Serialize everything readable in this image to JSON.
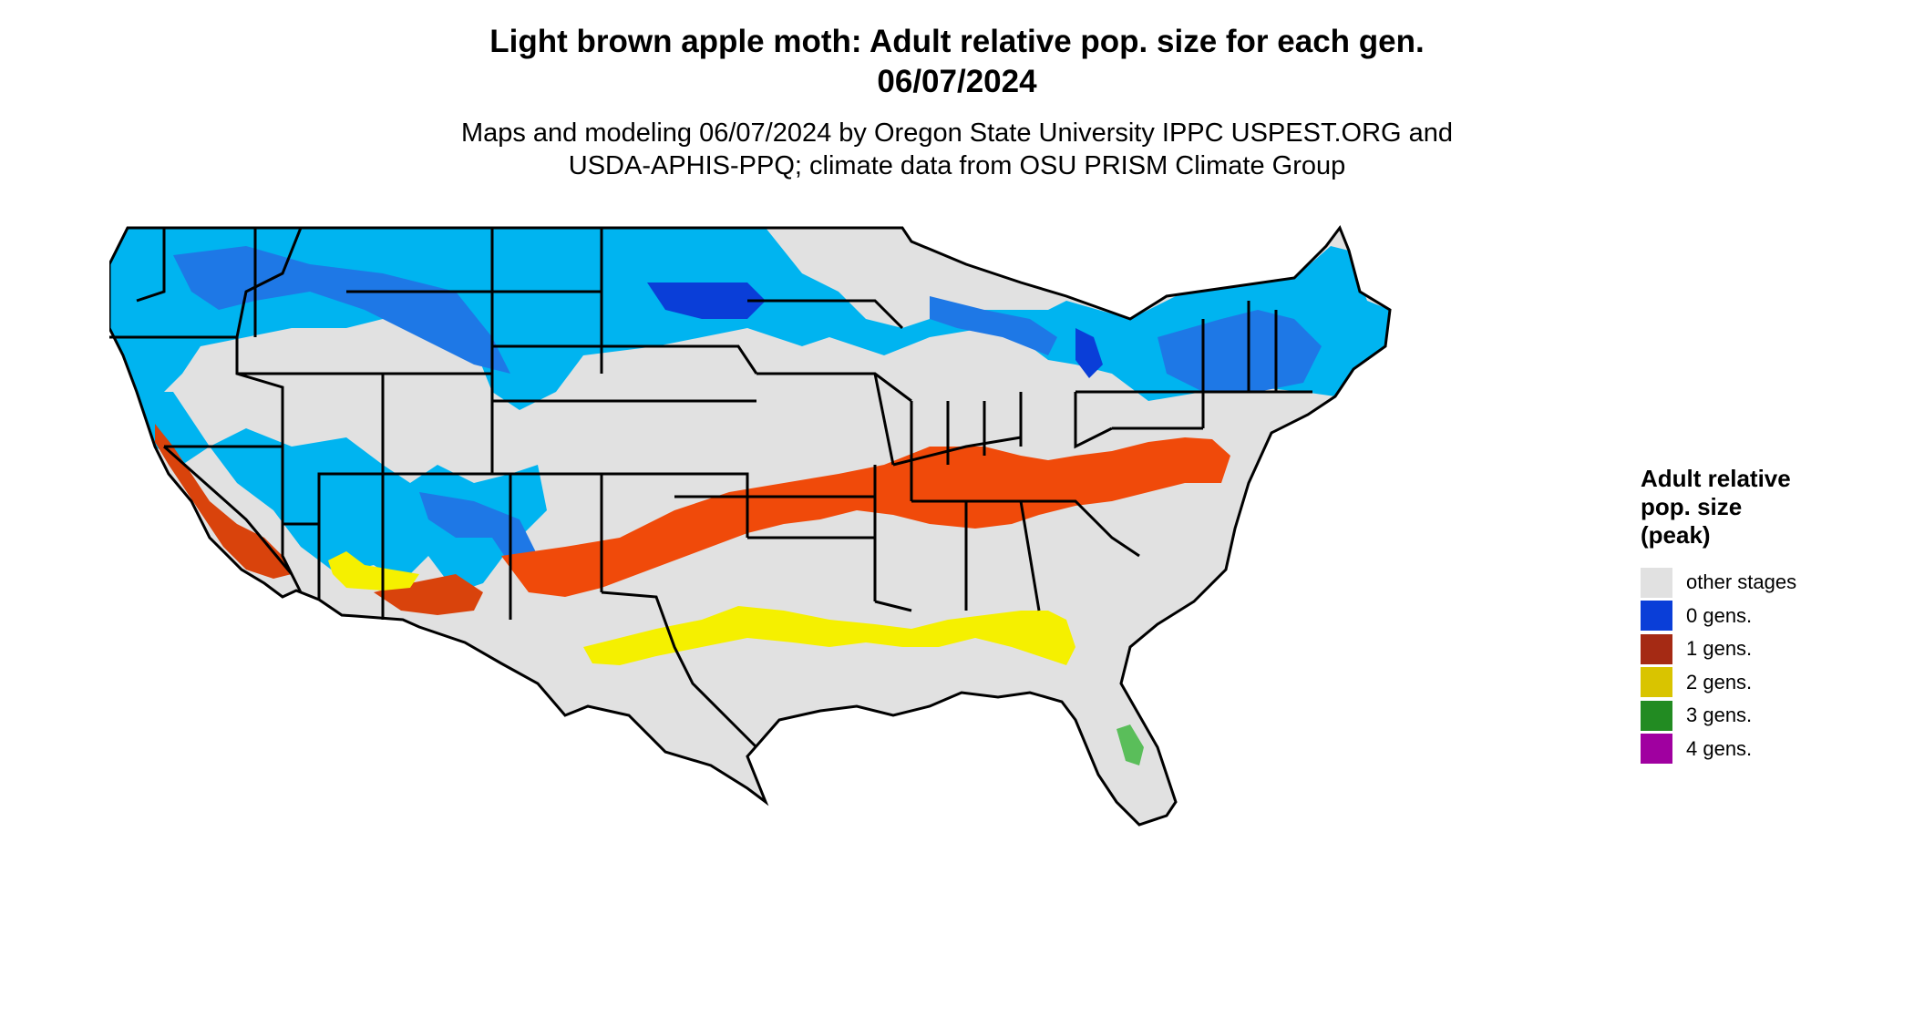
{
  "title": {
    "line1": "Light brown apple moth: Adult relative pop. size for each gen.",
    "line2": "06/07/2024"
  },
  "subtitle": {
    "line1": "Maps and modeling 06/07/2024 by Oregon State University IPPC USPEST.ORG and",
    "line2": "USDA-APHIS-PPQ; climate data from OSU PRISM Climate Group"
  },
  "legend": {
    "title_lines": [
      "Adult relative",
      "pop. size",
      "(peak)"
    ],
    "items": [
      {
        "label": "other stages",
        "color": "#e1e1e1"
      },
      {
        "label": "0 gens.",
        "color": "#0a3ed8"
      },
      {
        "label": "1 gens.",
        "color": "#a52a14"
      },
      {
        "label": "2 gens.",
        "color": "#d9c400"
      },
      {
        "label": "3 gens.",
        "color": "#228b22"
      },
      {
        "label": "4 gens.",
        "color": "#a000a0"
      }
    ]
  },
  "map": {
    "colors": {
      "land": "#e1e1e1",
      "light_blue": "#00b4f0",
      "mid_blue": "#1e78e6",
      "dark_blue": "#0a3ed8",
      "orange_red": "#f04a0a",
      "dark_red": "#c3380f",
      "yellow": "#f5f000",
      "green": "#5abe5a",
      "border": "#000000"
    }
  }
}
